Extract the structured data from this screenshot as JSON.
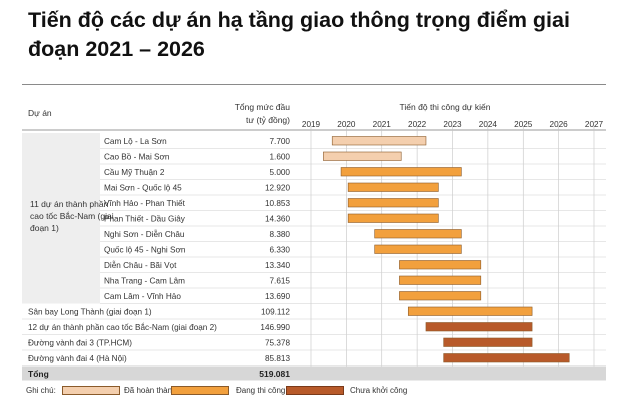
{
  "title": "Tiến độ các dự án hạ tầng giao thông trọng điểm giai đoạn 2021 – 2026",
  "header": {
    "project_col": "Dự án",
    "capital_col_line1": "Tổng mức đầu",
    "capital_col_line2": "tư (tỷ đồng)",
    "timeline_col": "Tiến độ thi công dự kiến"
  },
  "group_label": [
    "11 dự án thành phần",
    "cao tốc Bắc-Nam (giai",
    "đoạn 1)"
  ],
  "total": {
    "label": "Tổng",
    "value": "519.081"
  },
  "legend": {
    "label": "Ghi chú:",
    "items": [
      {
        "name": "Đã hoàn thành",
        "color": "#f4cfae"
      },
      {
        "name": "Đang thi công",
        "color": "#f2a03d"
      },
      {
        "name": "Chưa khởi công",
        "color": "#b85a2a"
      }
    ]
  },
  "colors": {
    "completed": "#f4cfae",
    "in_progress": "#f2a03d",
    "not_started": "#b85a2a",
    "bar_stroke": "#8a5a2a",
    "total_row_bg": "#d7d7d7",
    "group_bg": "#eeeeee"
  },
  "chart_data": {
    "type": "gantt",
    "title": "Tiến độ thi công dự kiến",
    "x_ticks": [
      "2019",
      "2020",
      "2021",
      "2022",
      "2023",
      "2024",
      "2025",
      "2026",
      "2027"
    ],
    "xlim": [
      2019,
      2027
    ],
    "grid": true,
    "rows": [
      {
        "name": "Cam Lộ - La Sơn",
        "capital": "7.700",
        "start": 2019.6,
        "end": 2022.25,
        "status": "completed",
        "group": true
      },
      {
        "name": "Cao Bồ - Mai Sơn",
        "capital": "1.600",
        "start": 2019.35,
        "end": 2021.55,
        "status": "completed",
        "group": true
      },
      {
        "name": "Cầu Mỹ Thuận 2",
        "capital": "5.000",
        "start": 2019.85,
        "end": 2023.25,
        "status": "in_progress",
        "group": true
      },
      {
        "name": "Mai Sơn - Quốc lộ 45",
        "capital": "12.920",
        "start": 2020.05,
        "end": 2022.6,
        "status": "in_progress",
        "group": true
      },
      {
        "name": "Vĩnh Hảo - Phan Thiết",
        "capital": "10.853",
        "start": 2020.05,
        "end": 2022.6,
        "status": "in_progress",
        "group": true
      },
      {
        "name": "Phan Thiết - Dầu Giây",
        "capital": "14.360",
        "start": 2020.05,
        "end": 2022.6,
        "status": "in_progress",
        "group": true
      },
      {
        "name": "Nghi Sơn - Diễn Châu",
        "capital": "8.380",
        "start": 2020.8,
        "end": 2023.25,
        "status": "in_progress",
        "group": true
      },
      {
        "name": "Quốc lộ 45 - Nghi Sơn",
        "capital": "6.330",
        "start": 2020.8,
        "end": 2023.25,
        "status": "in_progress",
        "group": true
      },
      {
        "name": "Diễn Châu - Bãi Vọt",
        "capital": "13.340",
        "start": 2021.5,
        "end": 2023.8,
        "status": "in_progress",
        "group": true
      },
      {
        "name": "Nha Trang - Cam Lâm",
        "capital": "7.615",
        "start": 2021.5,
        "end": 2023.8,
        "status": "in_progress",
        "group": true
      },
      {
        "name": "Cam Lâm - Vĩnh Hảo",
        "capital": "13.690",
        "start": 2021.5,
        "end": 2023.8,
        "status": "in_progress",
        "group": true
      },
      {
        "name": "Sân bay Long Thành (giai đoạn 1)",
        "capital": "109.112",
        "start": 2021.75,
        "end": 2025.25,
        "status": "in_progress",
        "group": false
      },
      {
        "name": "12 dự án thành phần cao tốc Bắc-Nam (giai đoạn 2)",
        "capital": "146.990",
        "start": 2022.25,
        "end": 2025.25,
        "status": "not_started",
        "group": false
      },
      {
        "name": "Đường vành đai 3 (TP.HCM)",
        "capital": "75.378",
        "start": 2022.75,
        "end": 2025.25,
        "status": "not_started",
        "group": false
      },
      {
        "name": "Đường vành đai 4 (Hà Nội)",
        "capital": "85.813",
        "start": 2022.75,
        "end": 2026.3,
        "status": "not_started",
        "group": false
      }
    ]
  }
}
